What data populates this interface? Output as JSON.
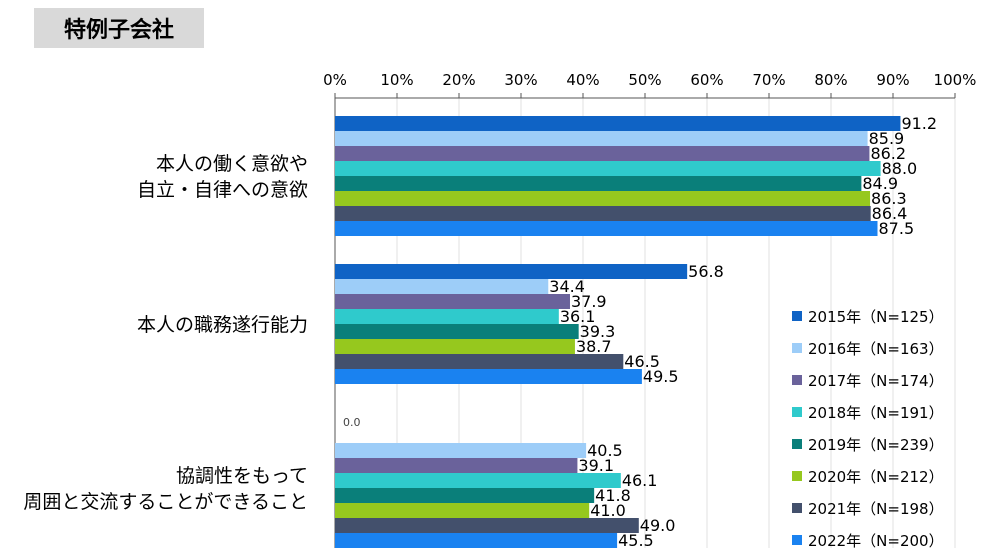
{
  "page_title": "特例子会社",
  "chart_data": {
    "type": "bar",
    "orientation": "horizontal",
    "xlim": [
      0,
      100
    ],
    "x_ticks": [
      "0%",
      "10%",
      "20%",
      "30%",
      "40%",
      "50%",
      "60%",
      "70%",
      "80%",
      "90%",
      "100%"
    ],
    "categories": [
      [
        "本人の働く意欲や",
        "自立・自律への意欲"
      ],
      [
        "本人の職務遂行能力"
      ],
      [
        "協調性をもって",
        "周囲と交流することができること"
      ]
    ],
    "series": [
      {
        "name": "2015年（N=125）",
        "color": "#0f63c5",
        "values": [
          91.2,
          56.8,
          0.0
        ]
      },
      {
        "name": "2016年（N=163）",
        "color": "#9dcdf8",
        "values": [
          85.9,
          34.4,
          40.5
        ]
      },
      {
        "name": "2017年（N=174）",
        "color": "#6a629b",
        "values": [
          86.2,
          37.9,
          39.1
        ]
      },
      {
        "name": "2018年（N=191）",
        "color": "#2fcacc",
        "values": [
          88.0,
          36.1,
          46.1
        ]
      },
      {
        "name": "2019年（N=239）",
        "color": "#0a7f7a",
        "values": [
          84.9,
          39.3,
          41.8
        ]
      },
      {
        "name": "2020年（N=212）",
        "color": "#96c81e",
        "values": [
          86.3,
          38.7,
          41.0
        ]
      },
      {
        "name": "2021年（N=198）",
        "color": "#43506c",
        "values": [
          86.4,
          46.5,
          49.0
        ]
      },
      {
        "name": "2022年（N=200）",
        "color": "#1a82f0",
        "values": [
          87.5,
          49.5,
          45.5
        ]
      }
    ],
    "data_labels": [
      [
        "91.2",
        "85.9",
        "86.2",
        "88.0",
        "84.9",
        "86.3",
        "86.4",
        "87.5"
      ],
      [
        "56.8",
        "34.4",
        "37.9",
        "36.1",
        "39.3",
        "38.7",
        "46.5",
        "49.5"
      ],
      [
        "0.0",
        "40.5",
        "39.1",
        "46.1",
        "41.8",
        "41.0",
        "49.0",
        "45.5"
      ]
    ],
    "grid": true,
    "legend_position": "right"
  }
}
